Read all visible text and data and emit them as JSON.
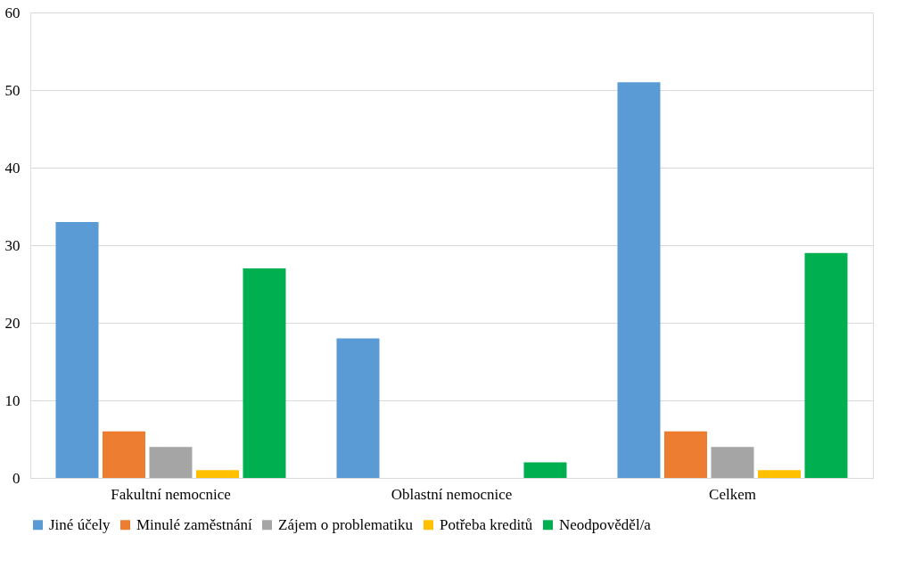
{
  "chart_data": {
    "type": "bar",
    "categories": [
      "Fakultní nemocnice",
      "Oblastní nemocnice",
      "Celkem"
    ],
    "series": [
      {
        "name": "Jiné účely",
        "color": "#5b9bd5",
        "values": [
          33,
          18,
          51
        ]
      },
      {
        "name": "Minulé zaměstnání",
        "color": "#ed7d31",
        "values": [
          6,
          0,
          6
        ]
      },
      {
        "name": "Zájem o problematiku",
        "color": "#a5a5a5",
        "values": [
          4,
          0,
          4
        ]
      },
      {
        "name": "Potřeba kreditů",
        "color": "#ffc000",
        "values": [
          1,
          0,
          1
        ]
      },
      {
        "name": "Neodpověděl/a",
        "color": "#00b050",
        "values": [
          27,
          2,
          29
        ]
      }
    ],
    "ylim": [
      0,
      60
    ],
    "yticks": [
      0,
      10,
      20,
      30,
      40,
      50,
      60
    ],
    "grid": "y",
    "legend": "bottom"
  }
}
